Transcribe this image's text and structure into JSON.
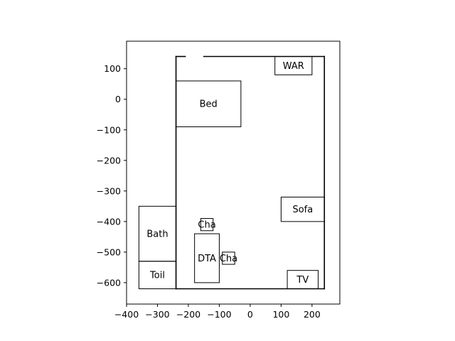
{
  "chart_data": {
    "type": "floor-plan",
    "xlim": [
      -400,
      290
    ],
    "ylim": [
      -670,
      190
    ],
    "x_ticks": [
      -400,
      -300,
      -200,
      -100,
      0,
      100,
      200
    ],
    "x_tick_labels": [
      "−400",
      "−300",
      "−200",
      "−100",
      "0",
      "100",
      "200"
    ],
    "y_ticks": [
      100,
      0,
      -100,
      -200,
      -300,
      -400,
      -500,
      -600
    ],
    "y_tick_labels": [
      "100",
      "0",
      "−100",
      "−200",
      "−300",
      "−400",
      "−500",
      "−600"
    ],
    "room_walls": [
      {
        "from": [
          -240,
          140
        ],
        "to": [
          -210,
          140
        ]
      },
      {
        "from": [
          -150,
          140
        ],
        "to": [
          240,
          140
        ]
      },
      {
        "from": [
          240,
          140
        ],
        "to": [
          240,
          -620
        ]
      },
      {
        "from": [
          240,
          -620
        ],
        "to": [
          -240,
          -620
        ]
      },
      {
        "from": [
          -240,
          -620
        ],
        "to": [
          -240,
          140
        ]
      }
    ],
    "furniture": [
      {
        "label": "WAR",
        "x": 80,
        "y": 80,
        "w": 120,
        "h": 60
      },
      {
        "label": "Bed",
        "x": -240,
        "y": -90,
        "w": 210,
        "h": 150
      },
      {
        "label": "Sofa",
        "x": 100,
        "y": -400,
        "w": 140,
        "h": 80
      },
      {
        "label": "Cha",
        "x": -160,
        "y": -430,
        "w": 40,
        "h": 40
      },
      {
        "label": "DTA",
        "x": -180,
        "y": -600,
        "w": 80,
        "h": 160
      },
      {
        "label": "Cha",
        "x": -90,
        "y": -540,
        "w": 40,
        "h": 40
      },
      {
        "label": "TV",
        "x": 120,
        "y": -620,
        "w": 100,
        "h": 60
      },
      {
        "label": "Bath",
        "x": -360,
        "y": -530,
        "w": 120,
        "h": 180
      },
      {
        "label": "Toil",
        "x": -360,
        "y": -620,
        "w": 120,
        "h": 90
      }
    ]
  }
}
